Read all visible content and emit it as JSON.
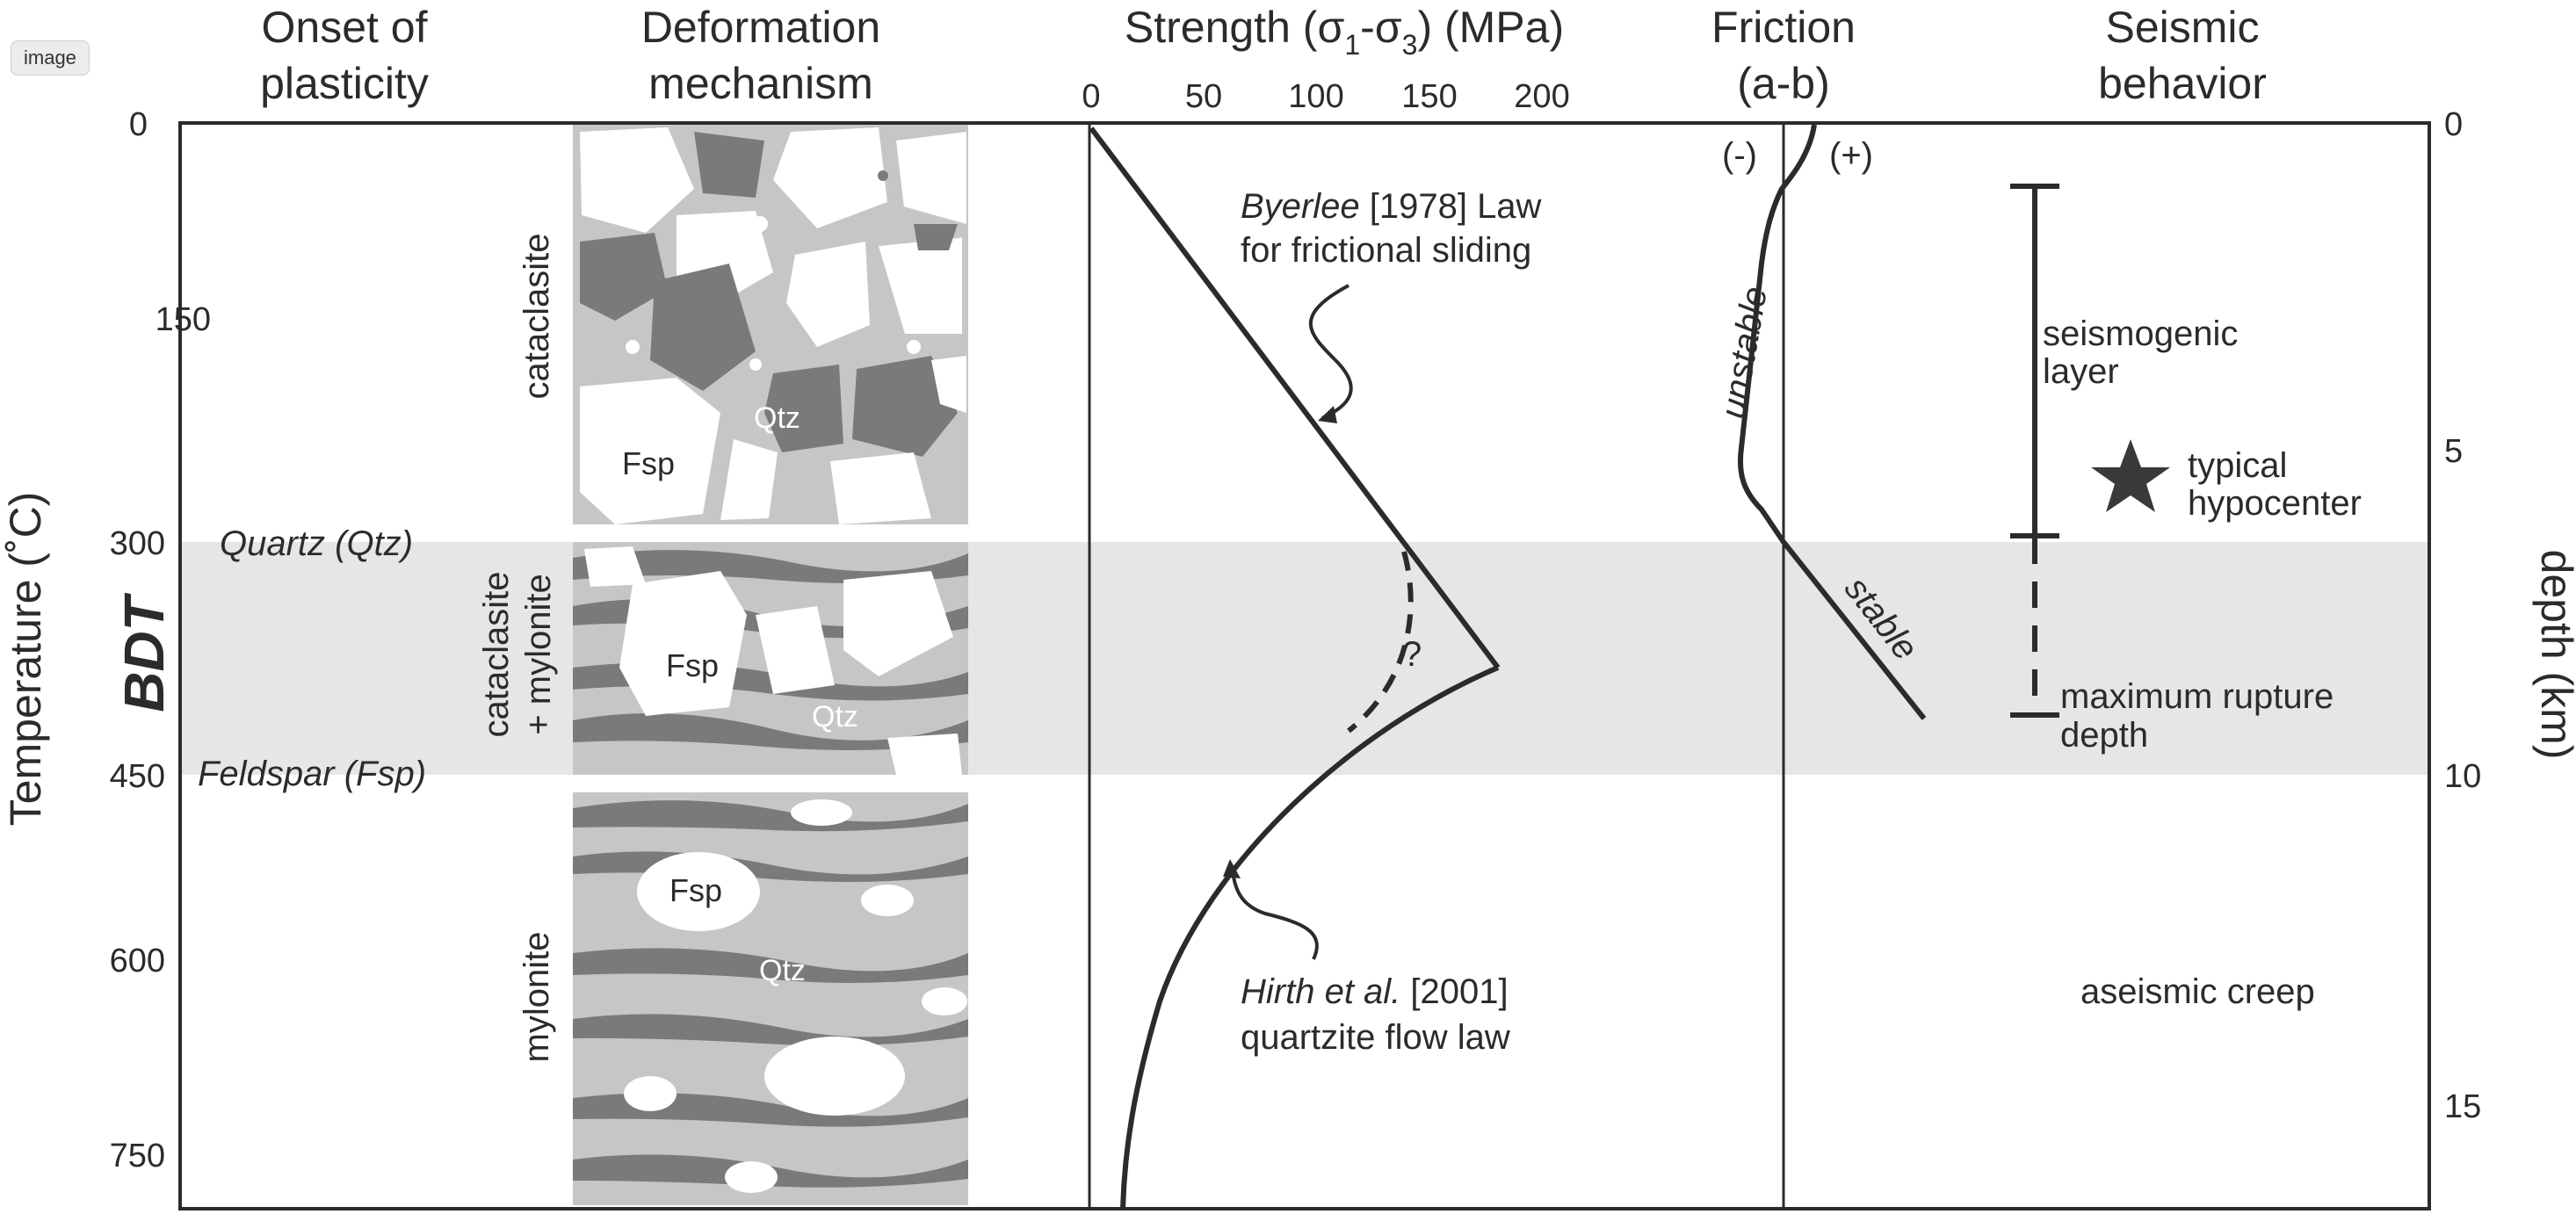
{
  "tag": "image",
  "headers": {
    "onset": [
      "Onset of",
      "plasticity"
    ],
    "deformation": [
      "Deformation",
      "mechanism"
    ],
    "strength_main": "Strength (σ",
    "strength_sub1": "1",
    "strength_mid": "-σ",
    "strength_sub3": "3",
    "strength_tail": ") (MPa)",
    "friction": [
      "Friction",
      "(a-b)"
    ],
    "seismic": [
      "Seismic",
      "behavior"
    ]
  },
  "axes": {
    "temperature_label": "Temperature (˚C)",
    "depth_label": "depth (km)",
    "bdt": "BDT",
    "temperature_ticks": [
      "0",
      "150",
      "300",
      "450",
      "600",
      "750"
    ],
    "depth_ticks": [
      "0",
      "5",
      "10",
      "15"
    ],
    "strength_ticks": [
      "0",
      "50",
      "100",
      "150",
      "200"
    ]
  },
  "plasticity": {
    "quartz": "Quartz (Qtz)",
    "feldspar": "Feldspar (Fsp)"
  },
  "mechanisms": {
    "cataclasite": "cataclasite",
    "mixed_line1": "cataclasite",
    "mixed_line2": "+ mylonite",
    "mylonite": "mylonite",
    "qtz": "Qtz",
    "fsp": "Fsp"
  },
  "strength_annotations": {
    "byerlee_author": "Byerlee",
    "byerlee_rest": " [1978] Law",
    "byerlee_line2": "for frictional sliding",
    "hirth_author": "Hirth et al.",
    "hirth_rest": " [2001]",
    "hirth_line2": "quartzite flow law",
    "question": "?"
  },
  "friction_labels": {
    "minus": "(-)",
    "plus": "(+)",
    "unstable": "unstable",
    "stable": "stable"
  },
  "seismic_labels": {
    "seismogenic1": "seismogenic",
    "seismogenic2": "layer",
    "hypocenter1": "typical",
    "hypocenter2": "hypocenter",
    "rupture1": "maximum rupture",
    "rupture2": "depth",
    "creep": "aseismic creep"
  },
  "colors": {
    "line": "#2b2b2b",
    "bdt_band": "#e6e6e6",
    "rock_light": "#c6c6c6",
    "rock_dark": "#7a7a7a",
    "grain_white": "#ffffff"
  }
}
